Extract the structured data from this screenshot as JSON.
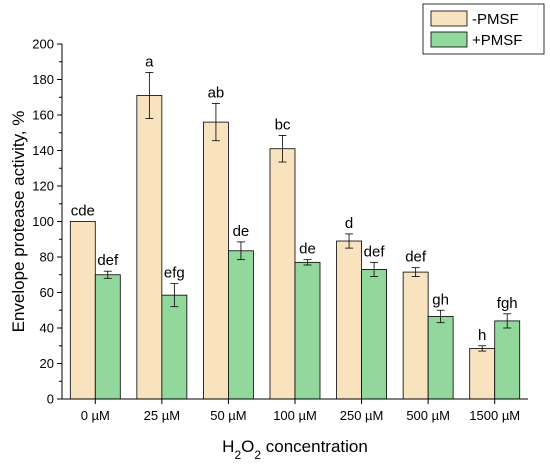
{
  "chart_data": {
    "type": "bar",
    "xlabel_parts": [
      "H",
      "2",
      "O",
      "2",
      " concentration"
    ],
    "ylabel": "Envelope protease activity, %",
    "ylim": [
      0,
      200
    ],
    "yticks": [
      0,
      20,
      40,
      60,
      80,
      100,
      120,
      140,
      160,
      180,
      200
    ],
    "categories": [
      "0 µM",
      "25 µM",
      "50 µM",
      "100 µM",
      "250 µM",
      "500 µM",
      "1500 µM"
    ],
    "legend_position": "top-right",
    "grid": false,
    "series": [
      {
        "name": "-PMSF",
        "color": "#f9e3bf",
        "values": [
          100,
          171,
          156,
          141,
          89,
          71.5,
          28.5
        ],
        "errors": [
          0,
          13,
          10.5,
          7.5,
          4,
          2.5,
          1.5
        ],
        "sig_labels": [
          "cde",
          "a",
          "ab",
          "bc",
          "d",
          "def",
          "h"
        ]
      },
      {
        "name": "+PMSF",
        "color": "#92d79b",
        "values": [
          70,
          58.5,
          83.5,
          77,
          73,
          46.5,
          44
        ],
        "errors": [
          2,
          6.5,
          5,
          1.5,
          4,
          3.5,
          4
        ],
        "sig_labels": [
          "def",
          "efg",
          "de",
          "de",
          "def",
          "gh",
          "fgh"
        ]
      }
    ]
  }
}
